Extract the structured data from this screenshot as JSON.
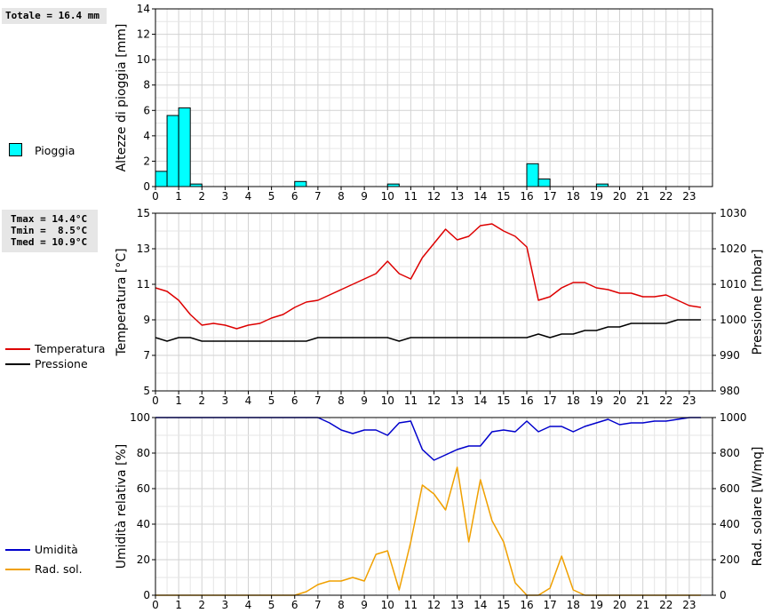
{
  "stats": {
    "totale": "Totale = 16.4 mm",
    "tmax": "Tmax = 14.4°C",
    "tmin": "Tmin =  8.5°C",
    "tmed": "Tmed = 10.9°C"
  },
  "legends": {
    "pioggia": "Pioggia",
    "temperatura": "Temperatura",
    "pressione": "Pressione",
    "umidita": "Umidità",
    "rad_sol": "Rad. sol."
  },
  "colors": {
    "rain": "#00ffff",
    "temperature": "#dd0000",
    "pressure": "#000000",
    "humidity": "#0000cc",
    "radiation": "#f0a000"
  },
  "chart_data": [
    {
      "type": "bar",
      "ylabel": "Altezze di pioggia [mm]",
      "xlim": [
        0,
        24
      ],
      "ylim": [
        0,
        14
      ],
      "yticks": [
        0,
        2,
        4,
        6,
        8,
        10,
        12,
        14
      ],
      "xticks": [
        0,
        1,
        2,
        3,
        4,
        5,
        6,
        7,
        8,
        9,
        10,
        11,
        12,
        13,
        14,
        15,
        16,
        17,
        18,
        19,
        20,
        21,
        22,
        23
      ],
      "grid": true,
      "legend": "left",
      "bar_width_hours": 0.5,
      "series": [
        {
          "name": "Pioggia",
          "bars": [
            {
              "x": 0.0,
              "value": 1.2
            },
            {
              "x": 0.5,
              "value": 5.6
            },
            {
              "x": 1.0,
              "value": 6.2
            },
            {
              "x": 1.5,
              "value": 0.2
            },
            {
              "x": 6.0,
              "value": 0.4
            },
            {
              "x": 10.0,
              "value": 0.2
            },
            {
              "x": 16.0,
              "value": 1.8
            },
            {
              "x": 16.5,
              "value": 0.6
            },
            {
              "x": 19.0,
              "value": 0.2
            }
          ]
        }
      ]
    },
    {
      "type": "line",
      "ylabel": "Temperatura [°C]",
      "y2label": "Pressione [mbar]",
      "xlim": [
        0,
        24
      ],
      "ylim": [
        5,
        15
      ],
      "y2lim": [
        980,
        1030
      ],
      "yticks": [
        5,
        7,
        9,
        11,
        13,
        15
      ],
      "y2ticks": [
        980,
        990,
        1000,
        1010,
        1020,
        1030
      ],
      "xticks": [
        0,
        1,
        2,
        3,
        4,
        5,
        6,
        7,
        8,
        9,
        10,
        11,
        12,
        13,
        14,
        15,
        16,
        17,
        18,
        19,
        20,
        21,
        22,
        23
      ],
      "grid": true,
      "legend": "left",
      "series": [
        {
          "name": "Temperatura",
          "axis": "y1",
          "x": [
            0,
            0.5,
            1,
            1.5,
            2,
            2.5,
            3,
            3.5,
            4,
            4.5,
            5,
            5.5,
            6,
            6.5,
            7,
            7.5,
            8,
            8.5,
            9,
            9.5,
            10,
            10.5,
            11,
            11.5,
            12,
            12.5,
            13,
            13.5,
            14,
            14.5,
            15,
            15.5,
            16,
            16.5,
            17,
            17.5,
            18,
            18.5,
            19,
            19.5,
            20,
            20.5,
            21,
            21.5,
            22,
            22.5,
            23,
            23.5
          ],
          "values": [
            10.8,
            10.6,
            10.1,
            9.3,
            8.7,
            8.8,
            8.7,
            8.5,
            8.7,
            8.8,
            9.1,
            9.3,
            9.7,
            10.0,
            10.1,
            10.4,
            10.7,
            11.0,
            11.3,
            11.6,
            12.3,
            11.6,
            11.3,
            12.5,
            13.3,
            14.1,
            13.5,
            13.7,
            14.3,
            14.4,
            14.0,
            13.7,
            13.1,
            10.1,
            10.3,
            10.8,
            11.1,
            11.1,
            10.8,
            10.7,
            10.5,
            10.5,
            10.3,
            10.3,
            10.4,
            10.1,
            9.8,
            9.7
          ]
        },
        {
          "name": "Pressione",
          "axis": "y2",
          "x": [
            0,
            0.5,
            1,
            1.5,
            2,
            2.5,
            3,
            3.5,
            4,
            4.5,
            5,
            5.5,
            6,
            6.5,
            7,
            7.5,
            8,
            8.5,
            9,
            9.5,
            10,
            10.5,
            11,
            11.5,
            12,
            12.5,
            13,
            13.5,
            14,
            14.5,
            15,
            15.5,
            16,
            16.5,
            17,
            17.5,
            18,
            18.5,
            19,
            19.5,
            20,
            20.5,
            21,
            21.5,
            22,
            22.5,
            23,
            23.5
          ],
          "values": [
            995,
            994,
            995,
            995,
            994,
            994,
            994,
            994,
            994,
            994,
            994,
            994,
            994,
            994,
            995,
            995,
            995,
            995,
            995,
            995,
            995,
            994,
            995,
            995,
            995,
            995,
            995,
            995,
            995,
            995,
            995,
            995,
            995,
            996,
            995,
            996,
            996,
            997,
            997,
            998,
            998,
            999,
            999,
            999,
            999,
            1000,
            1000,
            1000
          ]
        }
      ]
    },
    {
      "type": "line",
      "ylabel": "Umidità relativa [%]",
      "y2label": "Rad. solare [W/mq]",
      "xlim": [
        0,
        24
      ],
      "ylim": [
        0,
        100
      ],
      "y2lim": [
        0,
        1000
      ],
      "yticks": [
        0,
        20,
        40,
        60,
        80,
        100
      ],
      "y2ticks": [
        0,
        200,
        400,
        600,
        800,
        1000
      ],
      "xticks": [
        0,
        1,
        2,
        3,
        4,
        5,
        6,
        7,
        8,
        9,
        10,
        11,
        12,
        13,
        14,
        15,
        16,
        17,
        18,
        19,
        20,
        21,
        22,
        23
      ],
      "grid": true,
      "legend": "left",
      "series": [
        {
          "name": "Umidità",
          "axis": "y1",
          "x": [
            0,
            0.5,
            1,
            1.5,
            2,
            2.5,
            3,
            3.5,
            4,
            4.5,
            5,
            5.5,
            6,
            6.5,
            7,
            7.5,
            8,
            8.5,
            9,
            9.5,
            10,
            10.5,
            11,
            11.5,
            12,
            12.5,
            13,
            13.5,
            14,
            14.5,
            15,
            15.5,
            16,
            16.5,
            17,
            17.5,
            18,
            18.5,
            19,
            19.5,
            20,
            20.5,
            21,
            21.5,
            22,
            22.5,
            23,
            23.5
          ],
          "values": [
            100,
            100,
            100,
            100,
            100,
            100,
            100,
            100,
            100,
            100,
            100,
            100,
            100,
            100,
            100,
            97,
            93,
            91,
            93,
            93,
            90,
            97,
            98,
            82,
            76,
            79,
            82,
            84,
            84,
            92,
            93,
            92,
            98,
            92,
            95,
            95,
            92,
            95,
            97,
            99,
            96,
            97,
            97,
            98,
            98,
            99,
            100,
            100
          ]
        },
        {
          "name": "Rad. sol.",
          "axis": "y2",
          "x": [
            0,
            0.5,
            1,
            1.5,
            2,
            2.5,
            3,
            3.5,
            4,
            4.5,
            5,
            5.5,
            6,
            6.5,
            7,
            7.5,
            8,
            8.5,
            9,
            9.5,
            10,
            10.5,
            11,
            11.5,
            12,
            12.5,
            13,
            13.5,
            14,
            14.5,
            15,
            15.5,
            16,
            16.5,
            17,
            17.5,
            18,
            18.5,
            19,
            19.5,
            20,
            20.5,
            21,
            21.5,
            22,
            22.5,
            23,
            23.5
          ],
          "values": [
            0,
            0,
            0,
            0,
            0,
            0,
            0,
            0,
            0,
            0,
            0,
            0,
            0,
            20,
            60,
            80,
            80,
            100,
            80,
            230,
            250,
            30,
            300,
            620,
            570,
            480,
            720,
            300,
            650,
            420,
            300,
            70,
            0,
            0,
            40,
            220,
            30,
            0,
            0,
            0,
            0,
            0,
            0,
            0,
            0,
            0,
            0,
            0
          ]
        }
      ]
    }
  ]
}
